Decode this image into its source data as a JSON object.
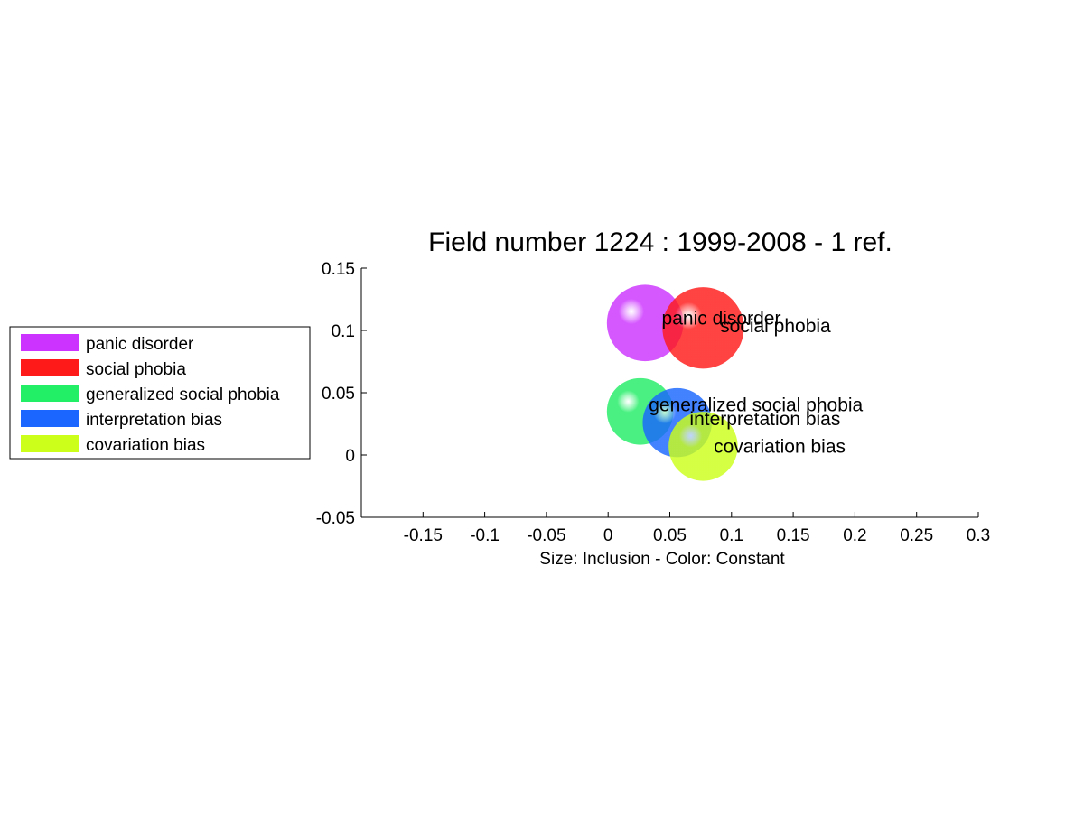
{
  "chart_data": {
    "type": "scatter",
    "title": "Field number 1224 : 1999-2008  - 1 ref.",
    "xlabel": "Size: Inclusion - Color: Constant",
    "ylabel": "",
    "xlim": [
      -0.2,
      0.3
    ],
    "ylim": [
      -0.05,
      0.15
    ],
    "xticks": [
      -0.15,
      -0.1,
      -0.05,
      0,
      0.05,
      0.1,
      0.15,
      0.2,
      0.25,
      0.3
    ],
    "xtick_labels": [
      "-0.15",
      "-0.1",
      "-0.05",
      "0",
      "0.05",
      "0.1",
      "0.15",
      "0.2",
      "0.25",
      "0.3"
    ],
    "yticks": [
      -0.05,
      0,
      0.05,
      0.1,
      0.15
    ],
    "ytick_labels": [
      "-0.05",
      "0",
      "0.05",
      "0.1",
      "0.15"
    ],
    "grid": false,
    "legend_position": "left",
    "series": [
      {
        "name": "panic disorder",
        "x": 0.03,
        "y": 0.106,
        "size": 0.031,
        "color": "#cc33ff"
      },
      {
        "name": "social phobia",
        "x": 0.077,
        "y": 0.102,
        "size": 0.033,
        "color": "#ff1a1a"
      },
      {
        "name": "generalized social phobia",
        "x": 0.026,
        "y": 0.035,
        "size": 0.027,
        "color": "#22ee66"
      },
      {
        "name": "interpretation bias",
        "x": 0.056,
        "y": 0.026,
        "size": 0.028,
        "color": "#1a66ff"
      },
      {
        "name": "covariation bias",
        "x": 0.077,
        "y": 0.007,
        "size": 0.028,
        "color": "#ccff1a"
      }
    ]
  }
}
